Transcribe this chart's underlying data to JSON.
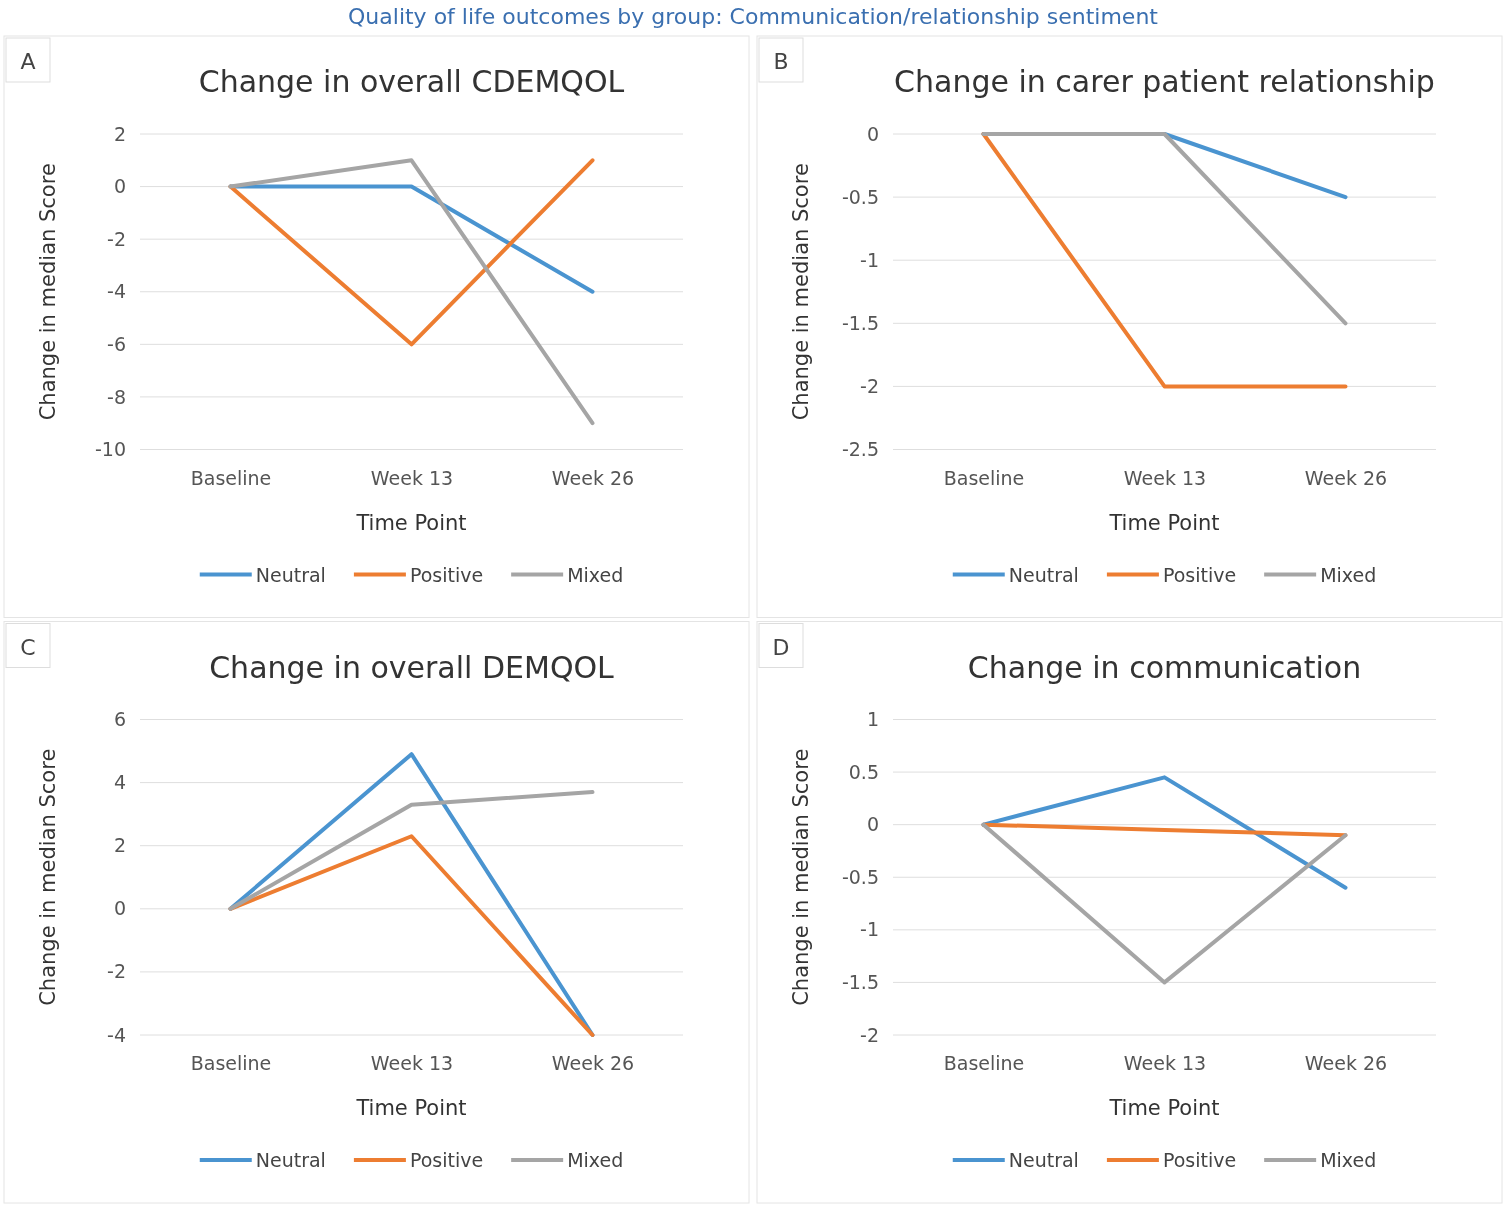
{
  "chart_data": [
    {
      "type": "line",
      "title": "Change in overall CDEMQOL",
      "xlabel": "Time Point",
      "ylabel": "Change in median Score",
      "categories": [
        "Baseline",
        "Week 13",
        "Week 26"
      ],
      "ylim": [
        -10,
        2
      ],
      "yticks": [
        -10,
        -8,
        -6,
        -4,
        -2,
        0,
        2
      ],
      "grid": "y",
      "legend": "bottom",
      "annotations": [
        "A",
        "Quality of life outcomes by group: Communication/relationship sentiment"
      ],
      "series": [
        {
          "name": "Neutral",
          "color": "#4a94d0",
          "values": [
            0,
            0,
            -4
          ]
        },
        {
          "name": "Positive",
          "color": "#ed7d31",
          "values": [
            0,
            -6,
            1
          ]
        },
        {
          "name": "Mixed",
          "color": "#a5a5a5",
          "values": [
            0,
            1,
            -9
          ]
        }
      ]
    },
    {
      "type": "line",
      "title": "Change in carer patient relationship",
      "xlabel": "Time Point",
      "ylabel": "Change in median Score",
      "categories": [
        "Baseline",
        "Week 13",
        "Week 26"
      ],
      "ylim": [
        -2.5,
        0
      ],
      "yticks": [
        -2.5,
        -2,
        -1.5,
        -1,
        -0.5,
        0
      ],
      "grid": "y",
      "legend": "bottom",
      "annotations": [
        "B"
      ],
      "series": [
        {
          "name": "Neutral",
          "color": "#4a94d0",
          "values": [
            0,
            0,
            -0.5
          ]
        },
        {
          "name": "Positive",
          "color": "#ed7d31",
          "values": [
            0,
            -2,
            -2
          ]
        },
        {
          "name": "Mixed",
          "color": "#a5a5a5",
          "values": [
            0,
            0,
            -1.5
          ]
        }
      ]
    },
    {
      "type": "line",
      "title": "Change in overall DEMQOL",
      "xlabel": "Time Point",
      "ylabel": "Change in median Score",
      "categories": [
        "Baseline",
        "Week 13",
        "Week 26"
      ],
      "ylim": [
        -4,
        6
      ],
      "yticks": [
        -4,
        -2,
        0,
        2,
        4,
        6
      ],
      "grid": "y",
      "legend": "bottom",
      "annotations": [
        "C"
      ],
      "series": [
        {
          "name": "Neutral",
          "color": "#4a94d0",
          "values": [
            0,
            4.9,
            -4
          ]
        },
        {
          "name": "Positive",
          "color": "#ed7d31",
          "values": [
            0,
            2.3,
            -4
          ]
        },
        {
          "name": "Mixed",
          "color": "#a5a5a5",
          "values": [
            0,
            3.3,
            3.7
          ]
        }
      ]
    },
    {
      "type": "line",
      "title": "Change in communication",
      "xlabel": "Time Point",
      "ylabel": "Change in median Score",
      "categories": [
        "Baseline",
        "Week 13",
        "Week 26"
      ],
      "ylim": [
        -2,
        1
      ],
      "yticks": [
        -2,
        -1.5,
        -1,
        -0.5,
        0,
        0.5,
        1
      ],
      "grid": "y",
      "legend": "bottom",
      "annotations": [
        "D"
      ],
      "series": [
        {
          "name": "Neutral",
          "color": "#4a94d0",
          "values": [
            0,
            0.45,
            -0.6
          ]
        },
        {
          "name": "Positive",
          "color": "#ed7d31",
          "values": [
            0,
            -0.05,
            -0.1
          ]
        },
        {
          "name": "Mixed",
          "color": "#a5a5a5",
          "values": [
            0,
            -1.5,
            -0.1
          ]
        }
      ]
    }
  ]
}
